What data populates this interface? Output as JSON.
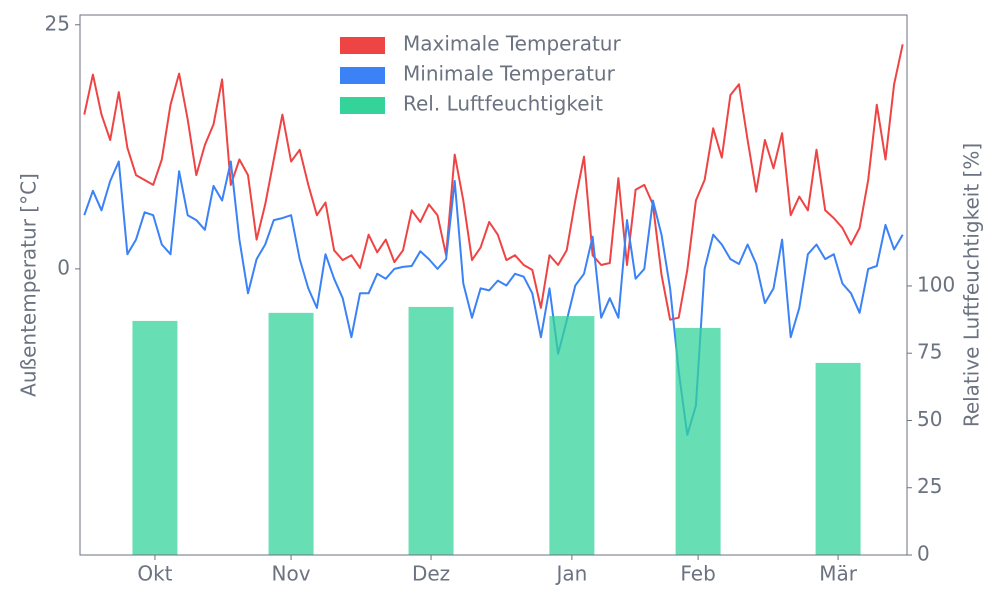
{
  "chart_data": {
    "type": "line",
    "ylabel": "Außentemperatur [°C]",
    "y2label": "Relative Luftfeuchtigkeit [%]",
    "x": [
      0,
      2,
      4,
      6,
      8,
      10,
      12,
      14,
      16,
      18,
      20,
      22,
      24,
      26,
      28,
      30,
      32,
      34,
      36,
      38,
      40,
      42,
      44,
      46,
      48,
      50,
      52,
      54,
      56,
      58,
      60,
      62,
      64,
      66,
      68,
      70,
      72,
      74,
      76,
      78,
      80,
      82,
      84,
      86,
      88,
      90,
      92,
      94,
      96,
      98,
      100,
      102,
      104,
      106,
      108,
      110,
      112,
      114,
      116,
      118,
      120,
      122,
      124,
      126,
      128,
      130,
      132,
      134,
      136,
      138,
      140,
      142,
      144,
      146,
      148,
      150,
      152,
      154,
      156,
      158,
      160,
      162,
      164,
      166,
      168,
      170,
      172,
      174,
      176,
      178,
      180,
      182,
      184,
      186,
      188,
      190
    ],
    "xlim": [
      -1,
      191
    ],
    "xticks": [
      {
        "value": 16.4,
        "label": "Okt"
      },
      {
        "value": 48,
        "label": "Nov"
      },
      {
        "value": 80.5,
        "label": "Dez"
      },
      {
        "value": 113.2,
        "label": "Jan"
      },
      {
        "value": 142.5,
        "label": "Feb"
      },
      {
        "value": 175,
        "label": "Mär"
      }
    ],
    "ylim": [
      -29.3,
      26.0
    ],
    "yticks": [
      0,
      25
    ],
    "y2lim": [
      0,
      200.7
    ],
    "y2ticks": [
      0,
      25,
      50,
      75,
      100
    ],
    "legend": "upper center",
    "series": [
      {
        "name": "Maximale Temperatur",
        "color": "#ef4444",
        "values": [
          15.8,
          19.9,
          15.8,
          13.2,
          18.1,
          12.4,
          9.6,
          9.1,
          8.6,
          11.2,
          16.8,
          20,
          15.3,
          9.6,
          12.7,
          14.8,
          19.4,
          8.6,
          11.2,
          9.6,
          3.0,
          6.6,
          11.2,
          15.8,
          11,
          12.2,
          8.6,
          5.5,
          6.8,
          1.9,
          0.9,
          1.4,
          0.1,
          3.5,
          1.7,
          3.0,
          0.7,
          1.9,
          6,
          4.8,
          6.6,
          5.5,
          1.4,
          11.7,
          7,
          0.9,
          2.2,
          4.8,
          3.5,
          0.9,
          1.4,
          0.4,
          -0.1,
          -4,
          1.4,
          0.4,
          1.9,
          7,
          11.5,
          1.4,
          0.4,
          0.6,
          9.3,
          0.4,
          8.1,
          8.6,
          6.6,
          -0.6,
          -5.2,
          -5,
          -0.1,
          7,
          9.1,
          14.4,
          11.4,
          17.8,
          18.9,
          13.2,
          7.9,
          13.2,
          10.3,
          13.9,
          5.5,
          7.4,
          6,
          12.2,
          6,
          5.2,
          4.2,
          2.5,
          4.2,
          9.1,
          16.8,
          11.2,
          18.9,
          23
        ]
      },
      {
        "name": "Minimale Temperatur",
        "color": "#3b82f6",
        "values": [
          5.5,
          8,
          6,
          9,
          11,
          1.5,
          3,
          5.8,
          5.5,
          2.5,
          1.5,
          10,
          5.5,
          5,
          4,
          8.5,
          7,
          11,
          3,
          -2.5,
          1,
          2.5,
          5,
          5.2,
          5.5,
          1,
          -2,
          -4,
          1.5,
          -1,
          -3,
          -7,
          -2.5,
          -2.5,
          -0.5,
          -1,
          0,
          0.2,
          0.3,
          1.8,
          1,
          0,
          1,
          9,
          -1.5,
          -5,
          -2,
          -2.2,
          -1.2,
          -1.7,
          -0.5,
          -0.8,
          -2.5,
          -7,
          -2,
          -8.7,
          -5.3,
          -1.7,
          -0.5,
          3.3,
          -5,
          -3,
          -5,
          5,
          -1,
          0,
          7,
          3.5,
          -2,
          -10.5,
          -17,
          -14,
          0,
          3.5,
          2.5,
          1,
          0.5,
          2.5,
          0.5,
          -3.5,
          -2,
          3,
          -7,
          -4,
          1.5,
          2.5,
          1,
          1.5,
          -1.5,
          -2.5,
          -4.5,
          0,
          0.3,
          4.5,
          2,
          3.5
        ]
      },
      {
        "name": "Rel. Luftfeuchtigkeit",
        "color": "#34d399",
        "type": "bar",
        "axis": "y2",
        "x": [
          16.4,
          48,
          80.5,
          113.2,
          142.5,
          175
        ],
        "values": [
          87,
          90,
          92.2,
          88.8,
          84.4,
          71.4
        ]
      }
    ]
  }
}
